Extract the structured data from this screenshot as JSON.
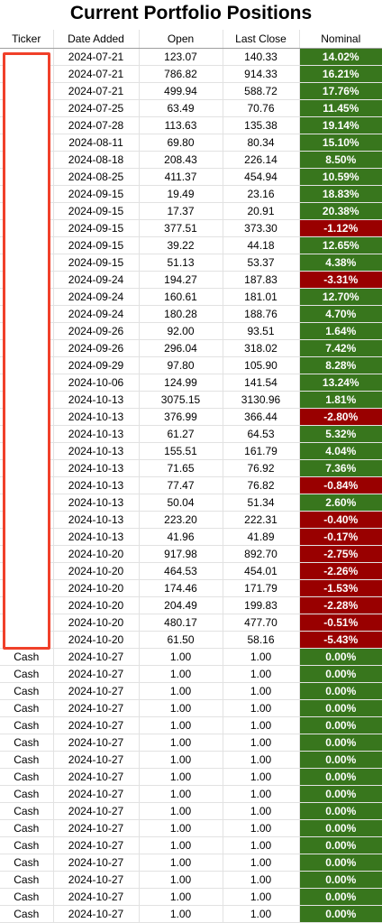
{
  "title": "Current Portfolio Positions",
  "headers": {
    "ticker": "Ticker",
    "date": "Date Added",
    "open": "Open",
    "close": "Last Close",
    "nominal": "Nominal"
  },
  "colors": {
    "positive": "#38761d",
    "negative": "#990000",
    "redaction_box": "#f0402a"
  },
  "rows": [
    {
      "ticker": "",
      "date": "2024-07-21",
      "open": "123.07",
      "close": "140.33",
      "nominal": "14.02%"
    },
    {
      "ticker": "",
      "date": "2024-07-21",
      "open": "786.82",
      "close": "914.33",
      "nominal": "16.21%"
    },
    {
      "ticker": "",
      "date": "2024-07-21",
      "open": "499.94",
      "close": "588.72",
      "nominal": "17.76%"
    },
    {
      "ticker": "",
      "date": "2024-07-25",
      "open": "63.49",
      "close": "70.76",
      "nominal": "11.45%"
    },
    {
      "ticker": "",
      "date": "2024-07-28",
      "open": "113.63",
      "close": "135.38",
      "nominal": "19.14%"
    },
    {
      "ticker": "",
      "date": "2024-08-11",
      "open": "69.80",
      "close": "80.34",
      "nominal": "15.10%"
    },
    {
      "ticker": "",
      "date": "2024-08-18",
      "open": "208.43",
      "close": "226.14",
      "nominal": "8.50%"
    },
    {
      "ticker": "",
      "date": "2024-08-25",
      "open": "411.37",
      "close": "454.94",
      "nominal": "10.59%"
    },
    {
      "ticker": "",
      "date": "2024-09-15",
      "open": "19.49",
      "close": "23.16",
      "nominal": "18.83%"
    },
    {
      "ticker": "",
      "date": "2024-09-15",
      "open": "17.37",
      "close": "20.91",
      "nominal": "20.38%"
    },
    {
      "ticker": "",
      "date": "2024-09-15",
      "open": "377.51",
      "close": "373.30",
      "nominal": "-1.12%"
    },
    {
      "ticker": "",
      "date": "2024-09-15",
      "open": "39.22",
      "close": "44.18",
      "nominal": "12.65%"
    },
    {
      "ticker": "",
      "date": "2024-09-15",
      "open": "51.13",
      "close": "53.37",
      "nominal": "4.38%"
    },
    {
      "ticker": "",
      "date": "2024-09-24",
      "open": "194.27",
      "close": "187.83",
      "nominal": "-3.31%"
    },
    {
      "ticker": "",
      "date": "2024-09-24",
      "open": "160.61",
      "close": "181.01",
      "nominal": "12.70%"
    },
    {
      "ticker": "",
      "date": "2024-09-24",
      "open": "180.28",
      "close": "188.76",
      "nominal": "4.70%"
    },
    {
      "ticker": "",
      "date": "2024-09-26",
      "open": "92.00",
      "close": "93.51",
      "nominal": "1.64%"
    },
    {
      "ticker": "",
      "date": "2024-09-26",
      "open": "296.04",
      "close": "318.02",
      "nominal": "7.42%"
    },
    {
      "ticker": "",
      "date": "2024-09-29",
      "open": "97.80",
      "close": "105.90",
      "nominal": "8.28%"
    },
    {
      "ticker": "",
      "date": "2024-10-06",
      "open": "124.99",
      "close": "141.54",
      "nominal": "13.24%"
    },
    {
      "ticker": "",
      "date": "2024-10-13",
      "open": "3075.15",
      "close": "3130.96",
      "nominal": "1.81%"
    },
    {
      "ticker": "",
      "date": "2024-10-13",
      "open": "376.99",
      "close": "366.44",
      "nominal": "-2.80%"
    },
    {
      "ticker": "",
      "date": "2024-10-13",
      "open": "61.27",
      "close": "64.53",
      "nominal": "5.32%"
    },
    {
      "ticker": "",
      "date": "2024-10-13",
      "open": "155.51",
      "close": "161.79",
      "nominal": "4.04%"
    },
    {
      "ticker": "",
      "date": "2024-10-13",
      "open": "71.65",
      "close": "76.92",
      "nominal": "7.36%"
    },
    {
      "ticker": "",
      "date": "2024-10-13",
      "open": "77.47",
      "close": "76.82",
      "nominal": "-0.84%"
    },
    {
      "ticker": "",
      "date": "2024-10-13",
      "open": "50.04",
      "close": "51.34",
      "nominal": "2.60%"
    },
    {
      "ticker": "",
      "date": "2024-10-13",
      "open": "223.20",
      "close": "222.31",
      "nominal": "-0.40%"
    },
    {
      "ticker": "",
      "date": "2024-10-13",
      "open": "41.96",
      "close": "41.89",
      "nominal": "-0.17%"
    },
    {
      "ticker": "",
      "date": "2024-10-20",
      "open": "917.98",
      "close": "892.70",
      "nominal": "-2.75%"
    },
    {
      "ticker": "",
      "date": "2024-10-20",
      "open": "464.53",
      "close": "454.01",
      "nominal": "-2.26%"
    },
    {
      "ticker": "",
      "date": "2024-10-20",
      "open": "174.46",
      "close": "171.79",
      "nominal": "-1.53%"
    },
    {
      "ticker": "",
      "date": "2024-10-20",
      "open": "204.49",
      "close": "199.83",
      "nominal": "-2.28%"
    },
    {
      "ticker": "",
      "date": "2024-10-20",
      "open": "480.17",
      "close": "477.70",
      "nominal": "-0.51%"
    },
    {
      "ticker": "",
      "date": "2024-10-20",
      "open": "61.50",
      "close": "58.16",
      "nominal": "-5.43%"
    },
    {
      "ticker": "Cash",
      "date": "2024-10-27",
      "open": "1.00",
      "close": "1.00",
      "nominal": "0.00%"
    },
    {
      "ticker": "Cash",
      "date": "2024-10-27",
      "open": "1.00",
      "close": "1.00",
      "nominal": "0.00%"
    },
    {
      "ticker": "Cash",
      "date": "2024-10-27",
      "open": "1.00",
      "close": "1.00",
      "nominal": "0.00%"
    },
    {
      "ticker": "Cash",
      "date": "2024-10-27",
      "open": "1.00",
      "close": "1.00",
      "nominal": "0.00%"
    },
    {
      "ticker": "Cash",
      "date": "2024-10-27",
      "open": "1.00",
      "close": "1.00",
      "nominal": "0.00%"
    },
    {
      "ticker": "Cash",
      "date": "2024-10-27",
      "open": "1.00",
      "close": "1.00",
      "nominal": "0.00%"
    },
    {
      "ticker": "Cash",
      "date": "2024-10-27",
      "open": "1.00",
      "close": "1.00",
      "nominal": "0.00%"
    },
    {
      "ticker": "Cash",
      "date": "2024-10-27",
      "open": "1.00",
      "close": "1.00",
      "nominal": "0.00%"
    },
    {
      "ticker": "Cash",
      "date": "2024-10-27",
      "open": "1.00",
      "close": "1.00",
      "nominal": "0.00%"
    },
    {
      "ticker": "Cash",
      "date": "2024-10-27",
      "open": "1.00",
      "close": "1.00",
      "nominal": "0.00%"
    },
    {
      "ticker": "Cash",
      "date": "2024-10-27",
      "open": "1.00",
      "close": "1.00",
      "nominal": "0.00%"
    },
    {
      "ticker": "Cash",
      "date": "2024-10-27",
      "open": "1.00",
      "close": "1.00",
      "nominal": "0.00%"
    },
    {
      "ticker": "Cash",
      "date": "2024-10-27",
      "open": "1.00",
      "close": "1.00",
      "nominal": "0.00%"
    },
    {
      "ticker": "Cash",
      "date": "2024-10-27",
      "open": "1.00",
      "close": "1.00",
      "nominal": "0.00%"
    },
    {
      "ticker": "Cash",
      "date": "2024-10-27",
      "open": "1.00",
      "close": "1.00",
      "nominal": "0.00%"
    },
    {
      "ticker": "Cash",
      "date": "2024-10-27",
      "open": "1.00",
      "close": "1.00",
      "nominal": "0.00%"
    }
  ]
}
